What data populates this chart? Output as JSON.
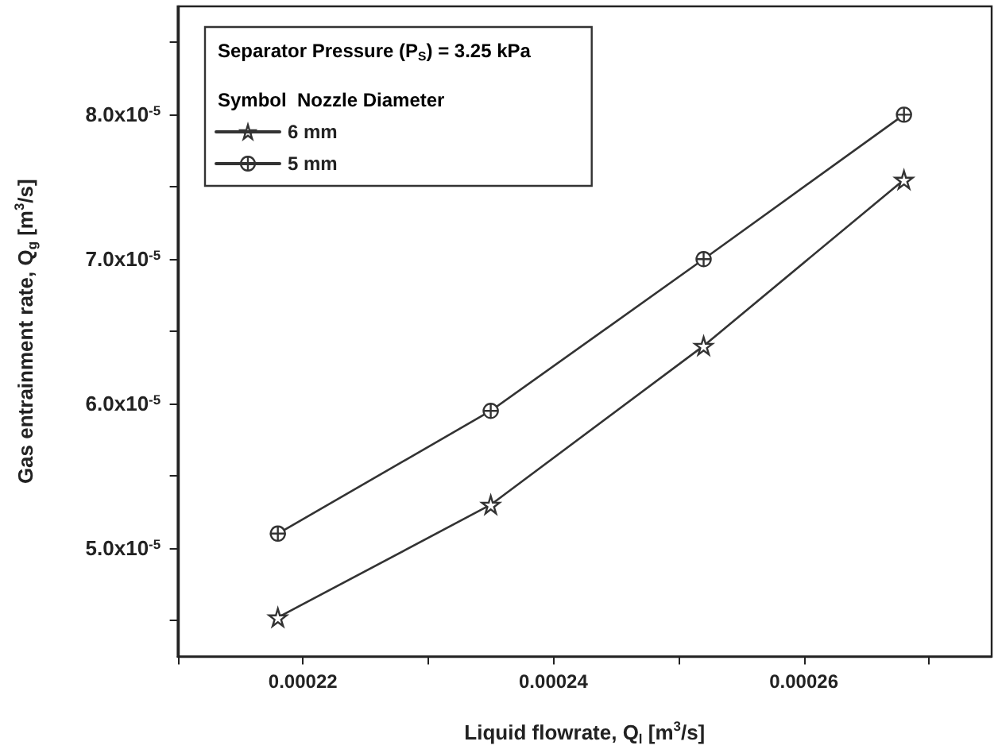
{
  "chart_data": {
    "type": "line",
    "xlabel": "Liquid flowrate, Q$_{l}$ [m$^{3}$/s]",
    "ylabel": "Gas entrainment rate, Q$_{g}$ [m$^{3}$/s]",
    "legend_title": "Separator Pressure (P$_{S}$) = 3.25 kPa",
    "annotations": [
      "Symbol  Nozzle Diameter"
    ],
    "x": [
      0.000218,
      0.000235,
      0.000252,
      0.000268
    ],
    "series": [
      {
        "name": "6 mm",
        "color": "#333333",
        "marker": "star",
        "values": [
          4.52e-05,
          5.3e-05,
          6.4e-05,
          7.55e-05
        ]
      },
      {
        "name": "5 mm",
        "color": "#333333",
        "marker": "cross",
        "values": [
          5.1e-05,
          5.95e-05,
          7e-05,
          8e-05
        ]
      }
    ],
    "xlim": [
      0.00021,
      0.000275
    ],
    "xticks": [
      {
        "value": 0.00021,
        "label": null
      },
      0.00022,
      {
        "value": 0.00023,
        "label": null
      },
      0.00024,
      {
        "value": 0.00025,
        "label": null
      },
      0.00026,
      {
        "value": 0.00027,
        "label": null
      }
    ],
    "ylim": [
      4.25e-05,
      8.75e-05
    ],
    "yticks": [
      {
        "value": 4.5e-05,
        "label": null
      },
      {
        "value": 5e-05,
        "label": "5.0x10$^{-5}$"
      },
      {
        "value": 5.5e-05,
        "label": null
      },
      {
        "value": 6e-05,
        "label": "6.0x10$^{-5}$"
      },
      {
        "value": 6.5e-05,
        "label": null
      },
      {
        "value": 7e-05,
        "label": "7.0x10$^{-5}$"
      },
      {
        "value": 7.5e-05,
        "label": null
      },
      {
        "value": 8e-05,
        "label": "8.0x10$^{-5}$"
      },
      {
        "value": 8.5e-05,
        "label": null
      }
    ],
    "grid": false,
    "legend": "top left",
    "line_style": "solid"
  }
}
